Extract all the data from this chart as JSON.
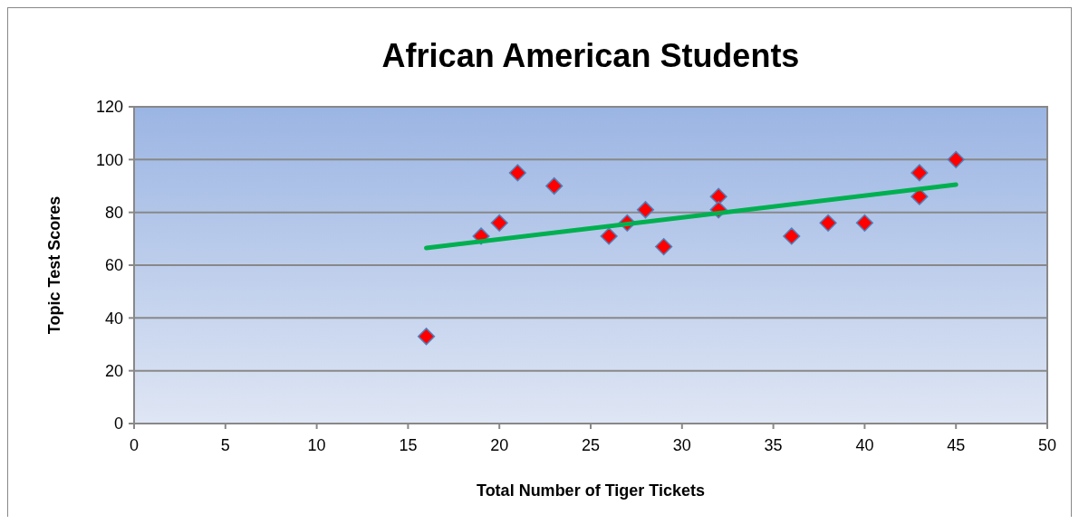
{
  "chart_data": {
    "type": "scatter",
    "title": "African American Students",
    "xlabel": "Total Number of Tiger Tickets",
    "ylabel": "Topic Test Scores",
    "xlim": [
      0,
      50
    ],
    "xticks": [
      0,
      5,
      10,
      15,
      20,
      25,
      30,
      35,
      40,
      45,
      50
    ],
    "ylim": [
      0,
      120
    ],
    "yticks": [
      0,
      20,
      40,
      60,
      80,
      100,
      120
    ],
    "grid": "y",
    "series": [
      {
        "marker": "diamond",
        "color": "#ff0000",
        "x": [
          16,
          19,
          20,
          21,
          23,
          26,
          27,
          28,
          29,
          32,
          32,
          36,
          38,
          40,
          43,
          43,
          45
        ],
        "values": [
          33,
          71,
          76,
          95,
          90,
          71,
          76,
          81,
          67,
          86,
          81,
          71,
          76,
          76,
          95,
          86,
          100
        ]
      },
      {
        "type": "line",
        "marker": "none",
        "color": "#00b050",
        "x": [
          16,
          45
        ],
        "values": [
          66.5,
          90.5
        ]
      }
    ]
  }
}
